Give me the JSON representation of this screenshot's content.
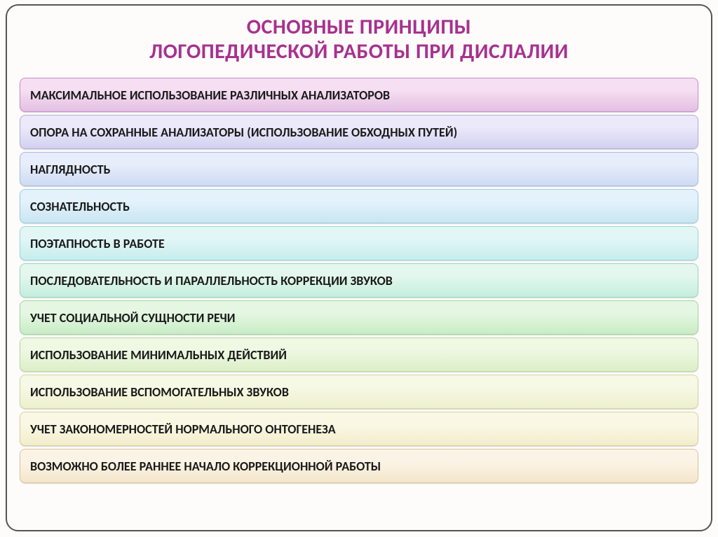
{
  "title": {
    "line1": "ОСНОВНЫЕ ПРИНЦИПЫ",
    "line2": "ЛОГОПЕДИЧЕСКОЙ РАБОТЫ ПРИ ДИСЛАЛИИ",
    "color": "#a8318f",
    "fontsize": 30
  },
  "bars": {
    "fontsize": 18,
    "items": [
      {
        "label": "МАКСИМАЛЬНОЕ ИСПОЛЬЗОВАНИЕ РАЗЛИЧНЫХ АНАЛИЗАТОРОВ",
        "grad_top": "#f6dff2",
        "grad_bot": "#e3bfe2",
        "border": "#c78fc4"
      },
      {
        "label": "ОПОРА НА СОХРАННЫЕ АНАЛИЗАТОРЫ (ИСПОЛЬЗОВАНИЕ ОБХОДНЫХ ПУТЕЙ)",
        "grad_top": "#ece9fa",
        "grad_bot": "#d3d0f0",
        "border": "#b2aedd"
      },
      {
        "label": "НАГЛЯДНОСТЬ",
        "grad_top": "#e7edfb",
        "grad_bot": "#cedbf3",
        "border": "#a9bce0"
      },
      {
        "label": "СОЗНАТЕЛЬНОСТЬ",
        "grad_top": "#e3f2fb",
        "grad_bot": "#c8e6f3",
        "border": "#9ecde0"
      },
      {
        "label": "ПОЭТАПНОСТЬ В РАБОТЕ",
        "grad_top": "#e3f6f6",
        "grad_bot": "#c6eded",
        "border": "#9cd8d6"
      },
      {
        "label": "ПОСЛЕДОВАТЕЛЬНОСТЬ И ПАРАЛЛЕЛЬНОСТЬ КОРРЕКЦИИ ЗВУКОВ",
        "grad_top": "#e3f7ee",
        "grad_bot": "#c5eedc",
        "border": "#9ad7be"
      },
      {
        "label": "УЧЕТ  СОЦИАЛЬНОЙ СУЩНОСТИ РЕЧИ",
        "grad_top": "#e5f7e3",
        "grad_bot": "#c8edc5",
        "border": "#a0d69c"
      },
      {
        "label": "ИСПОЛЬЗОВАНИЕ МИНИМАЛЬНЫХ ДЕЙСТВИЙ",
        "grad_top": "#eef8e3",
        "grad_bot": "#dbefc7",
        "border": "#b8d89e"
      },
      {
        "label": "ИСПОЛЬЗОВАНИЕ ВСПОМОГАТЕЛЬНЫХ ЗВУКОВ",
        "grad_top": "#f6f9e5",
        "grad_bot": "#edf0cc",
        "border": "#d1d79f"
      },
      {
        "label": "УЧЕТ ЗАКОНОМЕРНОСТЕЙ НОРМАЛЬНОГО ОНТОГЕНЕЗА",
        "grad_top": "#faf8e5",
        "grad_bot": "#f2edcb",
        "border": "#dccf9c"
      },
      {
        "label": "ВОЗМОЖНО БОЛЕЕ РАННЕЕ НАЧАЛО КОРРЕКЦИОННОЙ РАБОТЫ",
        "grad_top": "#fbf4e6",
        "grad_bot": "#f4e6cb",
        "border": "#ddc59b"
      }
    ]
  }
}
